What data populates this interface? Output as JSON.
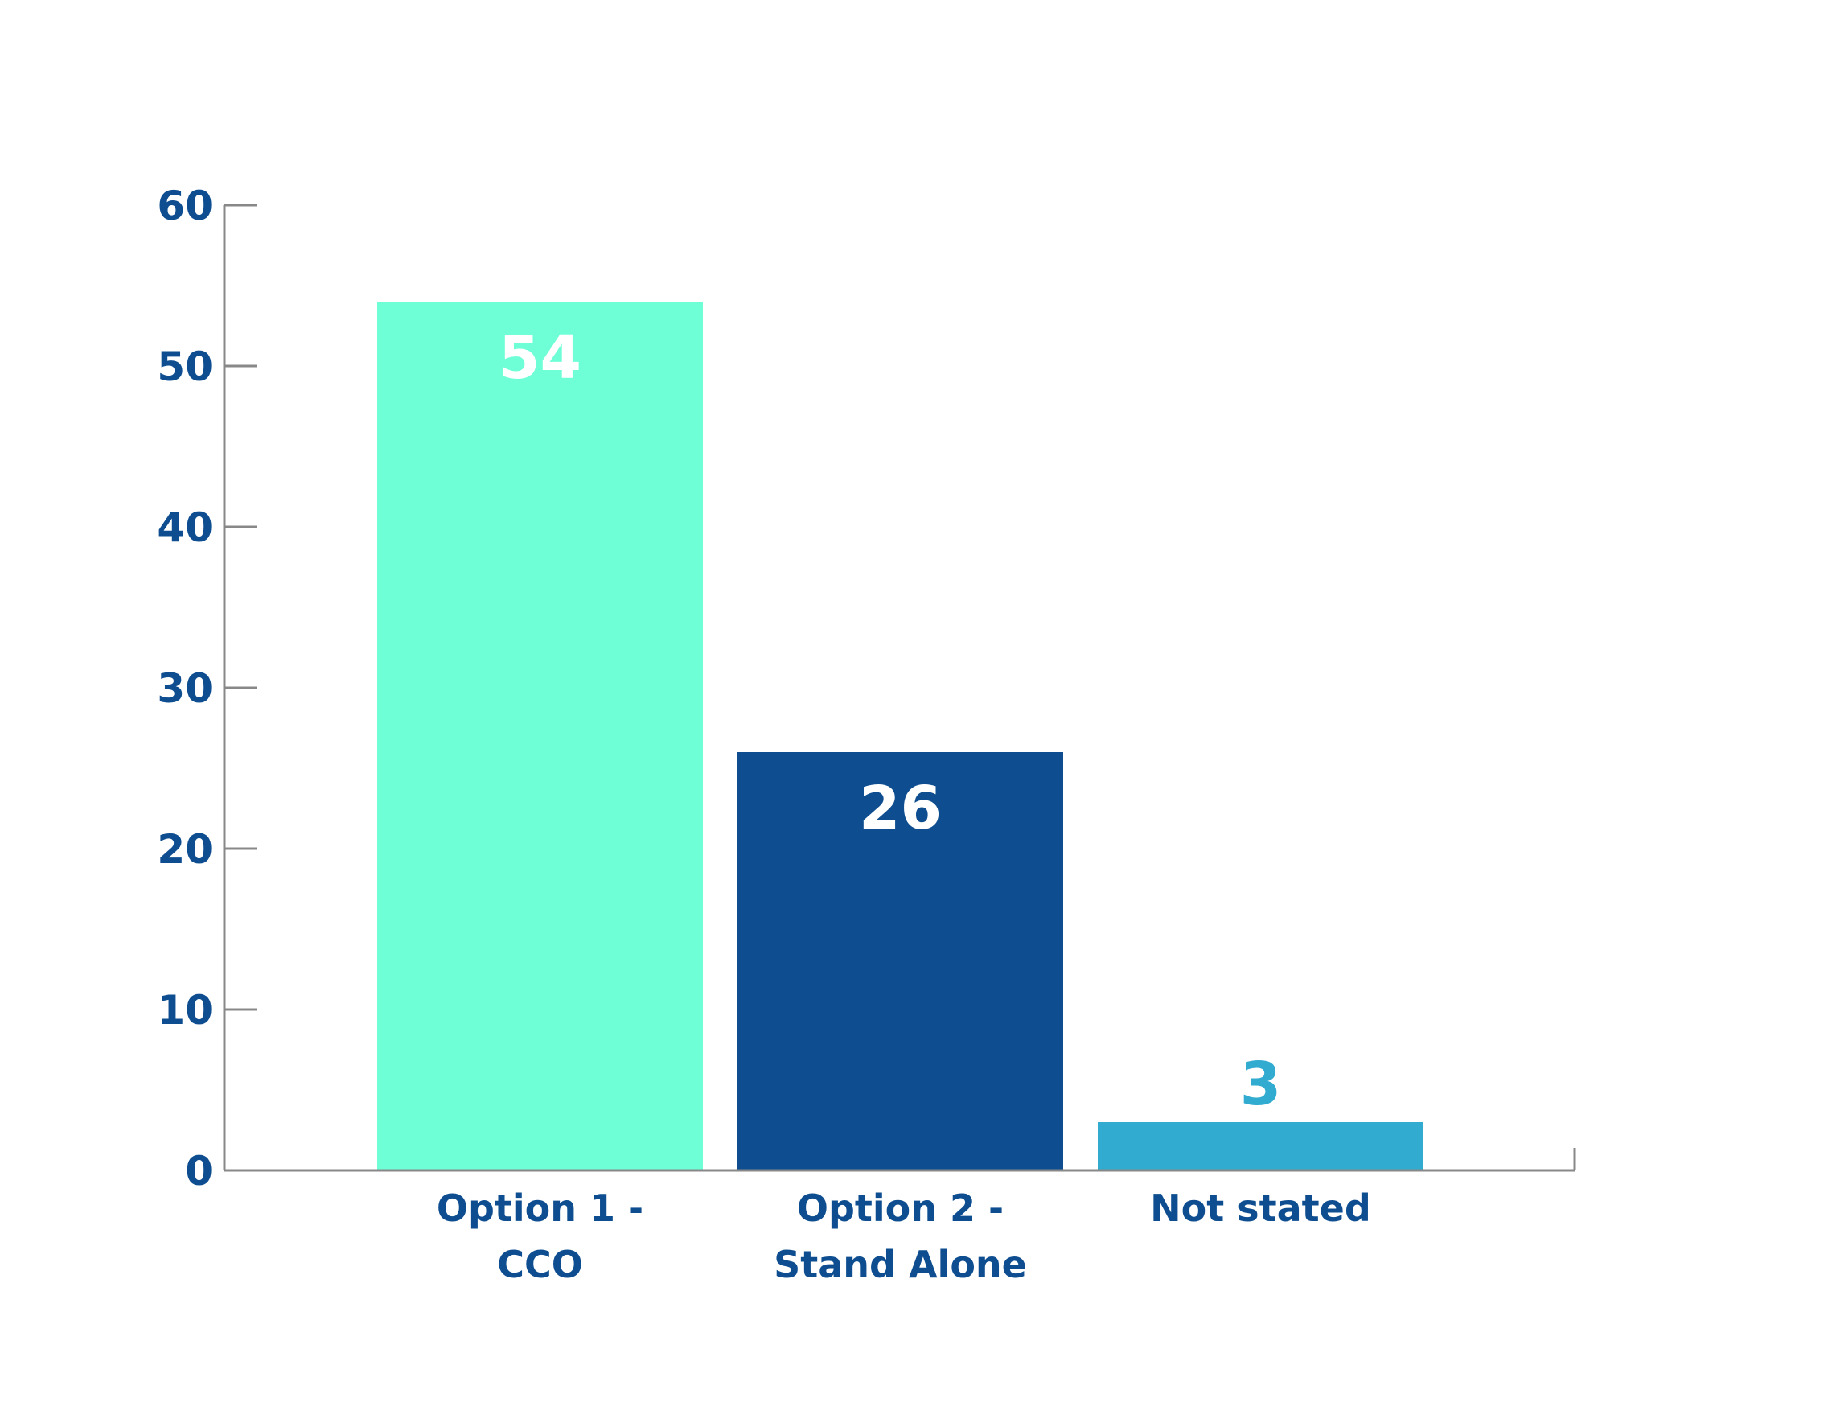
{
  "chart_data": {
    "type": "bar",
    "categories": [
      [
        "Option 1 -",
        "CCO"
      ],
      [
        "Option 2 -",
        "Stand Alone"
      ],
      [
        "Not stated"
      ]
    ],
    "values": [
      54,
      26,
      3
    ],
    "value_labels": [
      "54",
      "26",
      "3"
    ],
    "yticks": [
      "0",
      "10",
      "20",
      "30",
      "40",
      "50",
      "60"
    ],
    "ylim": [
      0,
      60
    ],
    "grid": false,
    "colors": {
      "bars": [
        "#6fffd6",
        "#0e4e90",
        "#31abd0"
      ],
      "value_labels": [
        "#ffffff",
        "#ffffff",
        "#31abd0"
      ],
      "axis_text": "#0e4e90",
      "axis_line": "#888888"
    }
  }
}
